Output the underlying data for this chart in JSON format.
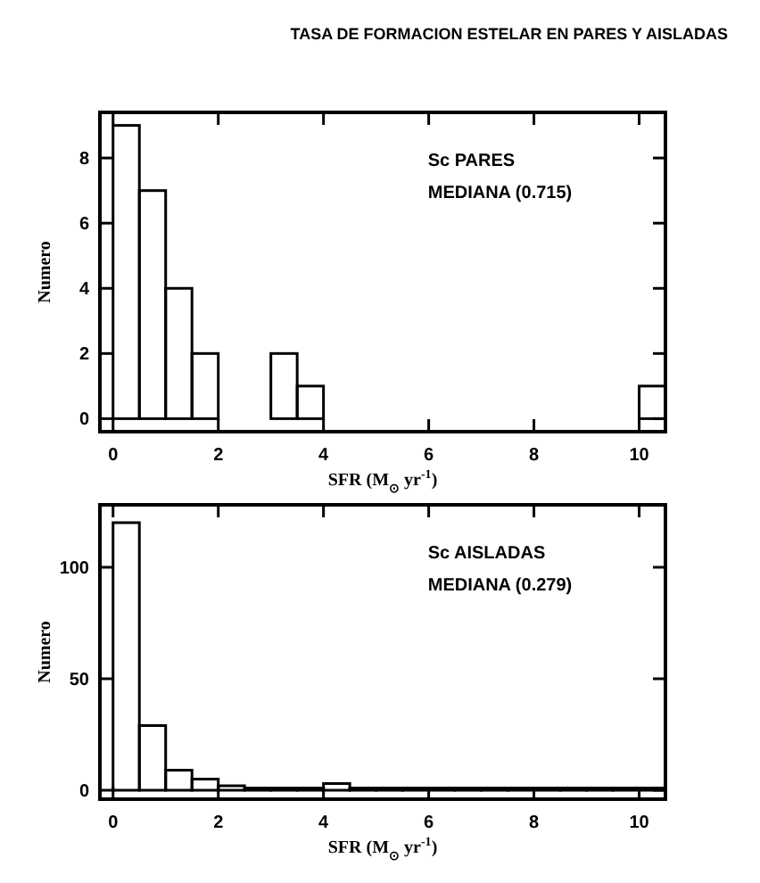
{
  "chart_data": [
    {
      "type": "histogram",
      "title": "TASA DE FORMACION ESTELAR EN PARES Y AISLADAS",
      "xlabel": "SFR (M$_{⊙}$ yr$^{-1}$)",
      "ylabel": "Numero",
      "annotations": [
        "Sc PARES",
        "MEDIANA (0.715)"
      ],
      "bins": [
        0,
        0.5,
        1,
        1.5,
        2,
        2.5,
        3,
        3.5,
        4,
        4.5,
        5,
        5.5,
        6,
        6.5,
        7,
        7.5,
        8,
        8.5,
        9,
        9.5,
        10,
        10.5
      ],
      "values": [
        9,
        7,
        4,
        2,
        0,
        0,
        2,
        1,
        0,
        0,
        0,
        0,
        0,
        0,
        0,
        0,
        0,
        0,
        0,
        0,
        1
      ],
      "color": "#000000",
      "xlim": [
        -0.25,
        10.5
      ],
      "xticks": [
        0,
        2,
        4,
        6,
        8,
        10
      ],
      "ylim": [
        -0.4,
        9.4
      ],
      "yticks": [
        0,
        2,
        4,
        6,
        8
      ],
      "grid": false
    },
    {
      "type": "histogram",
      "xlabel": "SFR (M$_{⊙}$ yr$^{-1}$)",
      "ylabel": "Numero",
      "annotations": [
        "Sc AISLADAS",
        "MEDIANA (0.279)"
      ],
      "bins": [
        0,
        0.5,
        1,
        1.5,
        2,
        2.5,
        3,
        3.5,
        4,
        4.5,
        5,
        5.5,
        6,
        6.5,
        7,
        7.5,
        8,
        8.5,
        9,
        9.5,
        10,
        10.5
      ],
      "values": [
        120,
        29,
        9,
        5,
        2,
        1,
        1,
        1,
        3,
        1,
        1,
        1,
        1,
        1,
        1,
        1,
        1,
        1,
        1,
        1,
        1
      ],
      "color": "#000000",
      "xlim": [
        -0.25,
        10.5
      ],
      "xticks": [
        0,
        2,
        4,
        6,
        8,
        10
      ],
      "ylim": [
        -4,
        128
      ],
      "yticks": [
        0,
        50,
        100
      ],
      "grid": false
    }
  ]
}
